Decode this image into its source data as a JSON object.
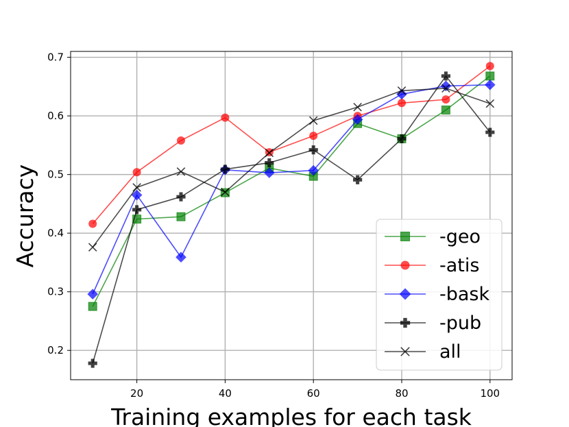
{
  "chart_data": {
    "type": "line",
    "xlabel": "Training examples for each task",
    "ylabel": "Accuracy",
    "xlim": [
      5,
      105
    ],
    "ylim": [
      0.15,
      0.71
    ],
    "xticks": [
      20,
      40,
      60,
      80,
      100
    ],
    "yticks": [
      0.2,
      0.3,
      0.4,
      0.5,
      0.6,
      0.7
    ],
    "x": [
      10,
      20,
      30,
      40,
      50,
      60,
      70,
      80,
      90,
      100
    ],
    "grid": true,
    "legend_position": "lower-right",
    "series": [
      {
        "name": "-geo",
        "color": "#008000",
        "marker": "square",
        "values": [
          0.275,
          0.424,
          0.428,
          0.469,
          0.511,
          0.497,
          0.587,
          0.561,
          0.61,
          0.668
        ]
      },
      {
        "name": "-atis",
        "color": "#ff0000",
        "marker": "circle",
        "values": [
          0.416,
          0.504,
          0.558,
          0.597,
          0.538,
          0.566,
          0.6,
          0.622,
          0.628,
          0.685
        ]
      },
      {
        "name": "-bask",
        "color": "#0000ff",
        "marker": "diamond",
        "values": [
          0.296,
          0.465,
          0.359,
          0.508,
          0.503,
          0.507,
          0.594,
          0.637,
          0.651,
          0.653
        ]
      },
      {
        "name": "-pub",
        "color": "#000000",
        "marker": "plus",
        "values": [
          0.178,
          0.44,
          0.462,
          0.509,
          0.52,
          0.542,
          0.491,
          0.561,
          0.668,
          0.572
        ]
      },
      {
        "name": "all",
        "color": "#000000",
        "marker": "x",
        "values": [
          0.376,
          0.478,
          0.505,
          0.47,
          0.537,
          0.592,
          0.615,
          0.643,
          0.647,
          0.621
        ]
      }
    ]
  }
}
